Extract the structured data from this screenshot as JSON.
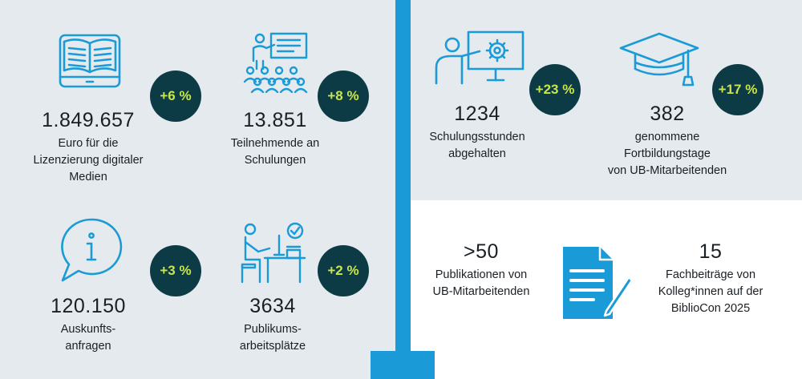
{
  "colors": {
    "accent_blue": "#1a9bd7",
    "badge_bg": "#0d3b45",
    "badge_text": "#c8e64a",
    "panel_bg": "#e4eaed"
  },
  "stats": {
    "media": {
      "number": "1.849.657",
      "label": "Euro für die\nLizenzierung digitaler\nMedien",
      "change": "+6 %",
      "icon": "tablet-book-icon"
    },
    "participants": {
      "number": "13.851",
      "label": "Teilnehmende an\nSchulungen",
      "change": "+8 %",
      "icon": "presentation-audience-icon"
    },
    "inquiries": {
      "number": "120.150",
      "label": "Auskunfts-\nanfragen",
      "change": "+3 %",
      "icon": "info-speech-bubble-icon"
    },
    "workplaces": {
      "number": "3634",
      "label": "Publikums-\narbeitsplätze",
      "change": "+2 %",
      "icon": "person-at-desk-icon"
    },
    "training_hours": {
      "number": "1234",
      "label": "Schulungsstunden\nabgehalten",
      "change": "+23 %",
      "icon": "trainer-whiteboard-gear-icon"
    },
    "training_days": {
      "number": "382",
      "label": "genommene\nFortbildungstage\nvon UB-Mitarbeitenden",
      "change": "+17 %",
      "icon": "graduation-cap-icon"
    },
    "publications": {
      "number": ">50",
      "label": "Publikationen von\nUB-Mitarbeitenden"
    },
    "contributions": {
      "number": "15",
      "label": "Fachbeiträge von\nKolleg*innen auf der\nBiblioCon 2025",
      "icon": "document-pen-icon"
    }
  }
}
